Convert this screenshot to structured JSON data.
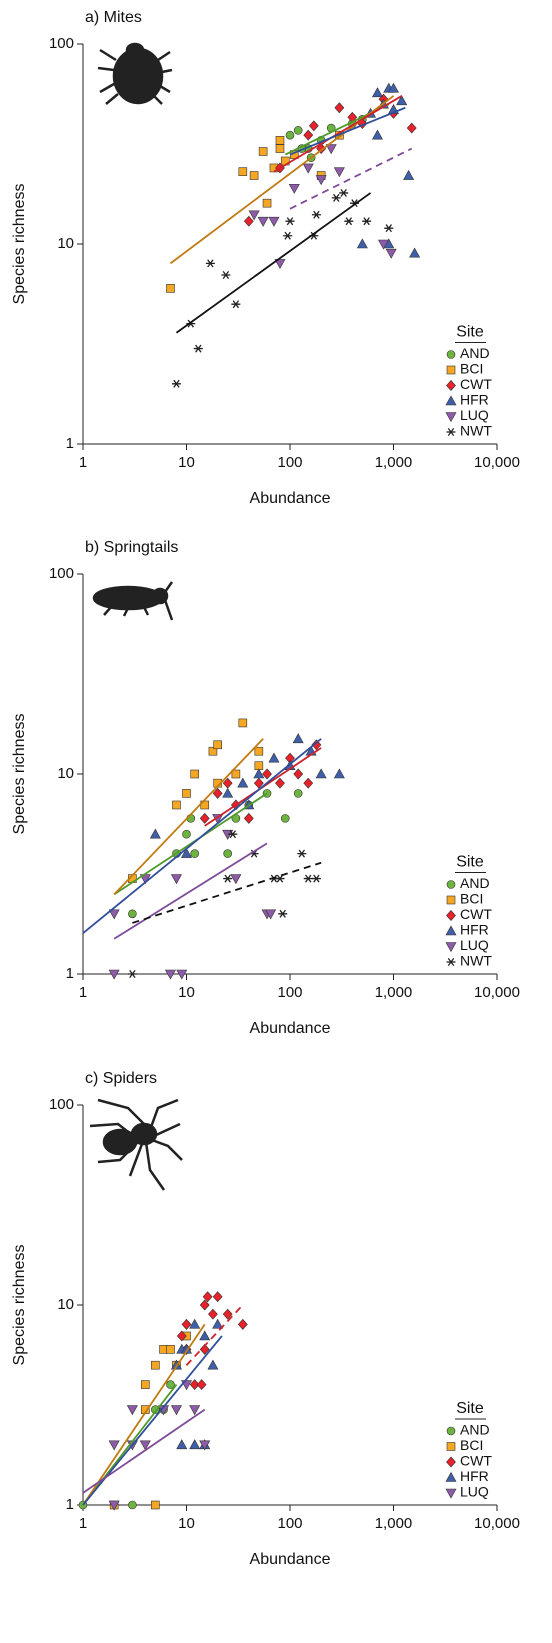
{
  "chart_data": [
    {
      "type": "scatter",
      "title": "a) Mites",
      "xlabel": "Abundance",
      "ylabel": "Species richness",
      "xlog": true,
      "ylog": true,
      "xlim": [
        1,
        10000
      ],
      "ylim": [
        1,
        100
      ],
      "xticks": [
        1,
        10,
        100,
        {
          "value": 1000,
          "label": "1,000"
        },
        {
          "value": 10000,
          "label": "10,000"
        }
      ],
      "yticks": [
        1,
        10,
        100
      ],
      "legend_title": "Site",
      "legend": "lower right",
      "series": [
        {
          "name": "AND",
          "color": "#6db33f",
          "line_color": "#4f9a2a",
          "marker": "circle",
          "x": [
            100,
            120,
            150,
            200,
            300,
            400,
            500,
            160,
            130,
            250
          ],
          "y": [
            35,
            37,
            30,
            33,
            35,
            40,
            42,
            27,
            30,
            38
          ],
          "fit": {
            "x": [
              90,
              900
            ],
            "y": [
              28,
              50
            ],
            "dashed": false
          }
        },
        {
          "name": "BCI",
          "color": "#f5a623",
          "line_color": "#c07a10",
          "marker": "square",
          "x": [
            7,
            35,
            55,
            60,
            80,
            90,
            45,
            110,
            200,
            300,
            80,
            70
          ],
          "y": [
            6,
            23,
            29,
            16,
            30,
            26,
            22,
            28,
            22,
            35,
            33,
            24
          ],
          "fit": {
            "x": [
              7,
              1000
            ],
            "y": [
              8,
              55
            ],
            "dashed": false
          }
        },
        {
          "name": "CWT",
          "color": "#e8212a",
          "line_color": "#d0202a",
          "marker": "diamond",
          "x": [
            40,
            80,
            150,
            170,
            300,
            500,
            800,
            1000,
            1500,
            200,
            400
          ],
          "y": [
            13,
            24,
            35,
            39,
            48,
            40,
            53,
            45,
            38,
            30,
            43
          ],
          "fit": {
            "x": [
              70,
              1200
            ],
            "y": [
              23,
              55
            ],
            "dashed": false
          }
        },
        {
          "name": "HFR",
          "color": "#3f5fa8",
          "line_color": "#2f4f9a",
          "marker": "triangle-up",
          "x": [
            600,
            700,
            800,
            900,
            1000,
            1200,
            1400,
            1600,
            500,
            900,
            700,
            1000
          ],
          "y": [
            45,
            57,
            50,
            60,
            60,
            52,
            22,
            9,
            10,
            10,
            35,
            47
          ],
          "fit": {
            "x": [
              100,
              1300
            ],
            "y": [
              28,
              48
            ],
            "dashed": false
          }
        },
        {
          "name": "LUQ",
          "color": "#8e5ba8",
          "line_color": "#7e4b98",
          "marker": "triangle-down",
          "x": [
            45,
            55,
            70,
            80,
            110,
            150,
            200,
            300,
            800,
            950,
            250
          ],
          "y": [
            14,
            13,
            13,
            8,
            19,
            24,
            21,
            23,
            10,
            9,
            30
          ],
          "fit": {
            "x": [
              100,
              1500
            ],
            "y": [
              15,
              30
            ],
            "dashed": true
          }
        },
        {
          "name": "NWT",
          "color": "#222222",
          "line_color": "#111111",
          "marker": "asterisk",
          "x": [
            8,
            11,
            13,
            17,
            24,
            30,
            95,
            100,
            170,
            180,
            330,
            370,
            420,
            550,
            900,
            280
          ],
          "y": [
            2,
            4,
            3,
            8,
            7,
            5,
            11,
            13,
            11,
            14,
            18,
            13,
            16,
            13,
            12,
            17
          ],
          "fit": {
            "x": [
              8,
              600
            ],
            "y": [
              3.6,
              18
            ],
            "dashed": false
          }
        }
      ]
    },
    {
      "type": "scatter",
      "title": "b) Springtails",
      "xlabel": "Abundance",
      "ylabel": "Species richness",
      "xlog": true,
      "ylog": true,
      "xlim": [
        1,
        10000
      ],
      "ylim": [
        1,
        100
      ],
      "xticks": [
        1,
        10,
        100,
        {
          "value": 1000,
          "label": "1,000"
        },
        {
          "value": 10000,
          "label": "10,000"
        }
      ],
      "yticks": [
        1,
        10,
        100
      ],
      "legend_title": "Site",
      "legend": "lower right",
      "series": [
        {
          "name": "AND",
          "color": "#6db33f",
          "line_color": "#4f9a2a",
          "marker": "circle",
          "x": [
            3,
            8,
            10,
            11,
            12,
            25,
            40,
            60,
            90,
            120,
            30
          ],
          "y": [
            2,
            4,
            5,
            6,
            4,
            4,
            7,
            8,
            6,
            8,
            6
          ],
          "fit": {
            "x": [
              2,
              60
            ],
            "y": [
              2.5,
              8
            ],
            "dashed": false
          }
        },
        {
          "name": "BCI",
          "color": "#f5a623",
          "line_color": "#c07a10",
          "marker": "square",
          "x": [
            3,
            8,
            10,
            15,
            18,
            20,
            30,
            35,
            50,
            50,
            20,
            12
          ],
          "y": [
            3,
            7,
            8,
            7,
            13,
            14,
            10,
            18,
            13,
            11,
            9,
            10
          ],
          "fit": {
            "x": [
              2,
              55
            ],
            "y": [
              2.5,
              15
            ],
            "dashed": false
          }
        },
        {
          "name": "CWT",
          "color": "#e8212a",
          "line_color": "#d0202a",
          "marker": "diamond",
          "x": [
            15,
            20,
            25,
            30,
            40,
            50,
            60,
            80,
            100,
            150,
            180,
            120
          ],
          "y": [
            6,
            8,
            9,
            7,
            6,
            9,
            10,
            9,
            12,
            9,
            14,
            10
          ],
          "fit": {
            "x": [
              15,
              200
            ],
            "y": [
              5.5,
              13.5
            ],
            "dashed": false
          }
        },
        {
          "name": "HFR",
          "color": "#3f5fa8",
          "line_color": "#2f4f9a",
          "marker": "triangle-up",
          "x": [
            5,
            10,
            25,
            35,
            40,
            50,
            70,
            100,
            120,
            160,
            200,
            300
          ],
          "y": [
            5,
            4,
            8,
            9,
            7,
            10,
            12,
            11,
            15,
            13,
            10,
            10
          ],
          "fit": {
            "x": [
              1,
              200
            ],
            "y": [
              1.6,
              15
            ],
            "dashed": false
          }
        },
        {
          "name": "LUQ",
          "color": "#8e5ba8",
          "line_color": "#7e4b98",
          "marker": "triangle-down",
          "x": [
            2,
            4,
            8,
            20,
            25,
            30,
            60,
            65,
            2,
            7,
            9
          ],
          "y": [
            2,
            3,
            3,
            6,
            5,
            3,
            2,
            2,
            1,
            1,
            1
          ],
          "fit": {
            "x": [
              2,
              60
            ],
            "y": [
              1.5,
              4.5
            ],
            "dashed": false
          }
        },
        {
          "name": "NWT",
          "color": "#222222",
          "line_color": "#111111",
          "marker": "asterisk",
          "x": [
            3,
            25,
            28,
            45,
            70,
            80,
            85,
            130,
            150,
            180
          ],
          "y": [
            1,
            3,
            5,
            4,
            3,
            3,
            2,
            4,
            3,
            3
          ],
          "fit": {
            "x": [
              3,
              200
            ],
            "y": [
              1.8,
              3.6
            ],
            "dashed": true
          }
        }
      ]
    },
    {
      "type": "scatter",
      "title": "c) Spiders",
      "xlabel": "Abundance",
      "ylabel": "Species richness",
      "xlog": true,
      "ylog": true,
      "xlim": [
        1,
        10000
      ],
      "ylim": [
        1,
        100
      ],
      "xticks": [
        1,
        10,
        100,
        {
          "value": 1000,
          "label": "1,000"
        },
        {
          "value": 10000,
          "label": "10,000"
        }
      ],
      "yticks": [
        1,
        10,
        100
      ],
      "legend_title": "Site",
      "legend": "lower right",
      "series": [
        {
          "name": "AND",
          "color": "#6db33f",
          "line_color": "#4f9a2a",
          "marker": "circle",
          "x": [
            1,
            3,
            5,
            6,
            7,
            8
          ],
          "y": [
            1,
            1,
            3,
            3,
            4,
            5
          ],
          "fit": {
            "x": [
              1,
              8
            ],
            "y": [
              1,
              4
            ],
            "dashed": false
          }
        },
        {
          "name": "BCI",
          "color": "#f5a623",
          "line_color": "#c07a10",
          "marker": "square",
          "x": [
            2,
            5,
            4,
            5,
            6,
            7,
            8,
            10,
            4
          ],
          "y": [
            1,
            1,
            4,
            5,
            6,
            6,
            5,
            7,
            3
          ],
          "fit": {
            "x": [
              1,
              15
            ],
            "y": [
              1,
              8
            ],
            "dashed": false
          }
        },
        {
          "name": "CWT",
          "color": "#e8212a",
          "line_color": "#d0202a",
          "marker": "diamond",
          "x": [
            9,
            10,
            12,
            14,
            15,
            16,
            18,
            20,
            25,
            35,
            15,
            10
          ],
          "y": [
            7,
            8,
            4,
            4,
            10,
            11,
            9,
            11,
            9,
            8,
            6,
            6
          ],
          "fit": {
            "x": [
              10,
              35
            ],
            "y": [
              5,
              10
            ],
            "dashed": true
          }
        },
        {
          "name": "HFR",
          "color": "#3f5fa8",
          "line_color": "#2f4f9a",
          "marker": "triangle-up",
          "x": [
            8,
            9,
            10,
            12,
            15,
            18,
            20,
            9,
            12,
            15
          ],
          "y": [
            5,
            6,
            6,
            8,
            7,
            5,
            8,
            2,
            2,
            2
          ],
          "fit": {
            "x": [
              1,
              22
            ],
            "y": [
              1,
              7
            ],
            "dashed": false
          }
        },
        {
          "name": "LUQ",
          "color": "#8e5ba8",
          "line_color": "#7e4b98",
          "marker": "triangle-down",
          "x": [
            2,
            3,
            4,
            6,
            8,
            10,
            12,
            15,
            2,
            3
          ],
          "y": [
            2,
            3,
            2,
            3,
            3,
            4,
            3,
            2,
            1,
            2
          ],
          "fit": {
            "x": [
              1,
              15
            ],
            "y": [
              1.15,
              3
            ],
            "dashed": false
          }
        }
      ]
    }
  ]
}
